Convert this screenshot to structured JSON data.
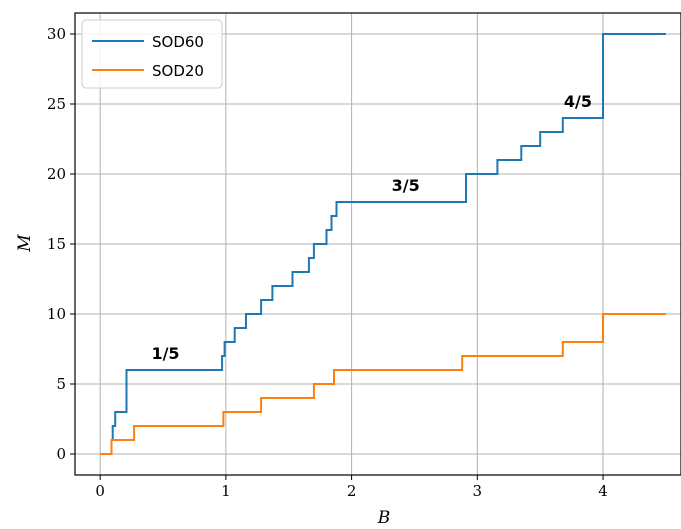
{
  "chart_data": {
    "type": "line",
    "title": "",
    "xlabel": "B",
    "ylabel": "M",
    "xlim": [
      -0.2,
      4.62
    ],
    "ylim": [
      -1.5,
      31.5
    ],
    "xticks": [
      0,
      1,
      2,
      3,
      4
    ],
    "yticks": [
      0,
      5,
      10,
      15,
      20,
      25,
      30
    ],
    "grid": true,
    "legend_position": "top-left",
    "series": [
      {
        "name": "SOD60",
        "color": "#1f77b4",
        "step_points": [
          [
            0.0,
            0
          ],
          [
            0.09,
            0
          ],
          [
            0.09,
            1
          ],
          [
            0.1,
            1
          ],
          [
            0.1,
            2
          ],
          [
            0.12,
            2
          ],
          [
            0.12,
            3
          ],
          [
            0.21,
            3
          ],
          [
            0.21,
            6
          ],
          [
            0.97,
            6
          ],
          [
            0.97,
            7
          ],
          [
            0.99,
            7
          ],
          [
            0.99,
            8
          ],
          [
            1.07,
            8
          ],
          [
            1.07,
            9
          ],
          [
            1.16,
            9
          ],
          [
            1.16,
            10
          ],
          [
            1.28,
            10
          ],
          [
            1.28,
            11
          ],
          [
            1.37,
            11
          ],
          [
            1.37,
            12
          ],
          [
            1.53,
            12
          ],
          [
            1.53,
            13
          ],
          [
            1.66,
            13
          ],
          [
            1.66,
            14
          ],
          [
            1.7,
            14
          ],
          [
            1.7,
            15
          ],
          [
            1.8,
            15
          ],
          [
            1.8,
            16
          ],
          [
            1.84,
            16
          ],
          [
            1.84,
            17
          ],
          [
            1.88,
            17
          ],
          [
            1.88,
            18
          ],
          [
            2.91,
            18
          ],
          [
            2.91,
            20
          ],
          [
            3.16,
            20
          ],
          [
            3.16,
            21
          ],
          [
            3.35,
            21
          ],
          [
            3.35,
            22
          ],
          [
            3.5,
            22
          ],
          [
            3.5,
            23
          ],
          [
            3.68,
            23
          ],
          [
            3.68,
            24
          ],
          [
            4.0,
            24
          ],
          [
            4.0,
            30
          ],
          [
            4.5,
            30
          ]
        ]
      },
      {
        "name": "SOD20",
        "color": "#ff7f0e",
        "step_points": [
          [
            0.0,
            0
          ],
          [
            0.09,
            0
          ],
          [
            0.09,
            1
          ],
          [
            0.27,
            1
          ],
          [
            0.27,
            2
          ],
          [
            0.98,
            2
          ],
          [
            0.98,
            3
          ],
          [
            1.28,
            3
          ],
          [
            1.28,
            4
          ],
          [
            1.7,
            4
          ],
          [
            1.7,
            5
          ],
          [
            1.86,
            5
          ],
          [
            1.86,
            6
          ],
          [
            2.88,
            6
          ],
          [
            2.88,
            7
          ],
          [
            3.68,
            7
          ],
          [
            3.68,
            8
          ],
          [
            4.0,
            8
          ],
          [
            4.0,
            10
          ],
          [
            4.5,
            10
          ]
        ]
      }
    ],
    "annotations": [
      {
        "text": "1/5",
        "x": 0.52,
        "y": 6.8
      },
      {
        "text": "3/5",
        "x": 2.43,
        "y": 18.8
      },
      {
        "text": "4/5",
        "x": 3.8,
        "y": 24.8
      }
    ]
  }
}
